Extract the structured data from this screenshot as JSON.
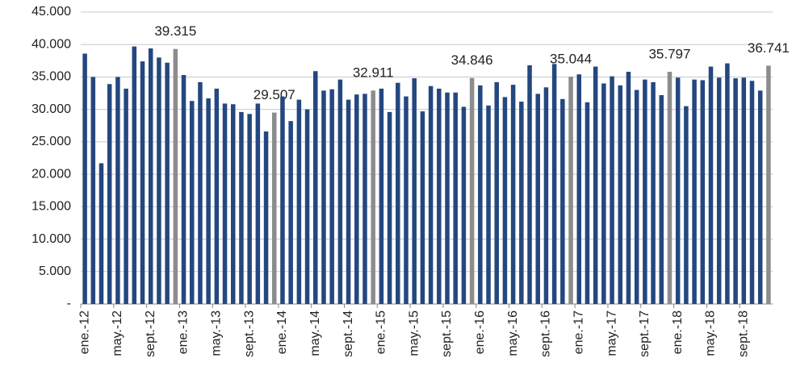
{
  "chart_data": {
    "type": "bar",
    "categories": [
      "ene.-12",
      null,
      null,
      null,
      "may.-12",
      null,
      null,
      null,
      "sept.-12",
      null,
      null,
      null,
      "ene.-13",
      null,
      null,
      null,
      "may.-13",
      null,
      null,
      null,
      "sept.-13",
      null,
      null,
      null,
      "ene.-14",
      null,
      null,
      null,
      "may.-14",
      null,
      null,
      null,
      "sept.-14",
      null,
      null,
      null,
      "ene.-15",
      null,
      null,
      null,
      "may.-15",
      null,
      null,
      null,
      "sept.-15",
      null,
      null,
      null,
      "ene.-16",
      null,
      null,
      null,
      "may.-16",
      null,
      null,
      null,
      "sept.-16",
      null,
      null,
      null,
      "ene.-17",
      null,
      null,
      null,
      "may.-17",
      null,
      null,
      null,
      "sept.-17",
      null,
      null,
      null,
      "ene.-18",
      null,
      null,
      null,
      "may.-18",
      null,
      null,
      null,
      "sept.-18",
      null,
      null,
      null
    ],
    "values": [
      38600,
      35000,
      21700,
      33900,
      35000,
      33200,
      39700,
      37400,
      39400,
      38000,
      37200,
      39315,
      35300,
      31300,
      34200,
      31700,
      33200,
      30900,
      30800,
      29600,
      29300,
      30900,
      26600,
      29507,
      32000,
      28200,
      31500,
      30000,
      35900,
      32900,
      33100,
      34600,
      31500,
      32300,
      32400,
      32911,
      33200,
      29600,
      34100,
      32000,
      34800,
      29700,
      33600,
      33200,
      32600,
      32600,
      30400,
      34846,
      33700,
      30600,
      34200,
      31900,
      33800,
      31200,
      36800,
      32400,
      33400,
      37000,
      31600,
      35044,
      35400,
      31100,
      36600,
      34000,
      35100,
      33700,
      35800,
      33000,
      34600,
      34200,
      32200,
      35797,
      34900,
      30500,
      34600,
      34500,
      36600,
      34900,
      37100,
      34800,
      34900,
      34400,
      32900,
      36741
    ],
    "value_labels": [
      null,
      null,
      null,
      null,
      null,
      null,
      null,
      null,
      null,
      null,
      null,
      "39.315",
      null,
      null,
      null,
      null,
      null,
      null,
      null,
      null,
      null,
      null,
      null,
      "29.507",
      null,
      null,
      null,
      null,
      null,
      null,
      null,
      null,
      null,
      null,
      null,
      "32.911",
      null,
      null,
      null,
      null,
      null,
      null,
      null,
      null,
      null,
      null,
      null,
      "34.846",
      null,
      null,
      null,
      null,
      null,
      null,
      null,
      null,
      null,
      null,
      null,
      "35.044",
      null,
      null,
      null,
      null,
      null,
      null,
      null,
      null,
      null,
      null,
      null,
      "35.797",
      null,
      null,
      null,
      null,
      null,
      null,
      null,
      null,
      null,
      null,
      null,
      "36.741"
    ],
    "color": "#24477f",
    "highlight_color": "#8c8c8c",
    "ylim": [
      0,
      45000
    ],
    "yticks": [
      {
        "value": 0,
        "label": "-"
      },
      {
        "value": 5000,
        "label": "5.000"
      },
      {
        "value": 10000,
        "label": "10.000"
      },
      {
        "value": 15000,
        "label": "15.000"
      },
      {
        "value": 20000,
        "label": "20.000"
      },
      {
        "value": 25000,
        "label": "25.000"
      },
      {
        "value": 30000,
        "label": "30.000"
      },
      {
        "value": 35000,
        "label": "35.000"
      },
      {
        "value": 40000,
        "label": "40.000"
      },
      {
        "value": 45000,
        "label": "45.000"
      }
    ],
    "grid": true
  }
}
